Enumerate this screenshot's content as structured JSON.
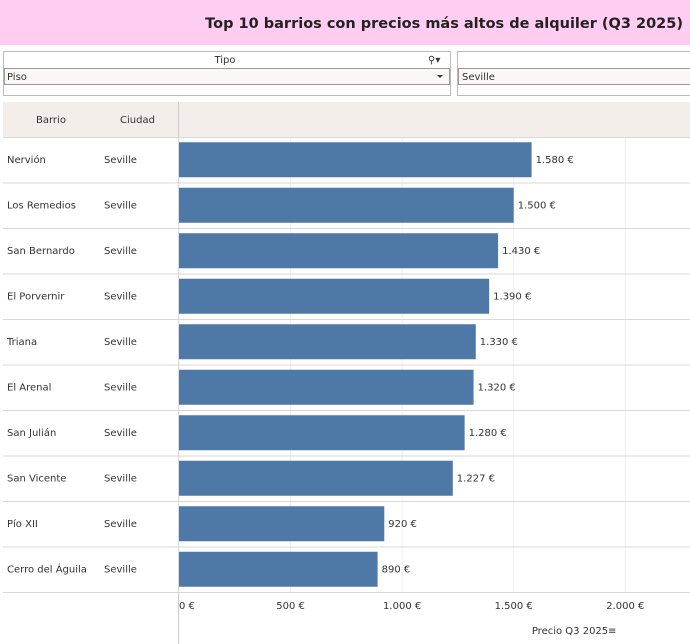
{
  "title": "Top 10 barrios con precios más altos de alquiler (Q3 2025)",
  "filters": [
    {
      "label": "Tipo",
      "value": "Piso"
    },
    {
      "value": "Seville"
    }
  ],
  "chart_data": {
    "type": "bar",
    "orientation": "horizontal",
    "row_headers": [
      "Barrio",
      "Ciudad"
    ],
    "categories": [
      "Nervión",
      "Los Remedios",
      "San Bernardo",
      "El Porvernir",
      "Triana",
      "El Arenal",
      "San Julián",
      "San Vicente",
      "Pío XII",
      "Cerro del Águila"
    ],
    "cities": [
      "Seville",
      "Seville",
      "Seville",
      "Seville",
      "Seville",
      "Seville",
      "Seville",
      "Seville",
      "Seville",
      "Seville"
    ],
    "values": [
      1580,
      1500,
      1430,
      1390,
      1330,
      1320,
      1280,
      1227,
      920,
      890
    ],
    "value_labels": [
      "1.580 €",
      "1.500 €",
      "1.430 €",
      "1.390 €",
      "1.330 €",
      "1.320 €",
      "1.280 €",
      "1.227 €",
      "920 €",
      "890 €"
    ],
    "x_label": "Precio Q3 2025",
    "xlim": [
      0,
      2290
    ],
    "xticks": [
      {
        "value": 0,
        "label": "0 €"
      },
      {
        "value": 500,
        "label": "500 €"
      },
      {
        "value": 1000,
        "label": "1.000 €"
      },
      {
        "value": 1500,
        "label": "1.500 €"
      },
      {
        "value": 2000,
        "label": "2.000 €"
      }
    ],
    "color": "#4e79a7",
    "grid": true
  }
}
